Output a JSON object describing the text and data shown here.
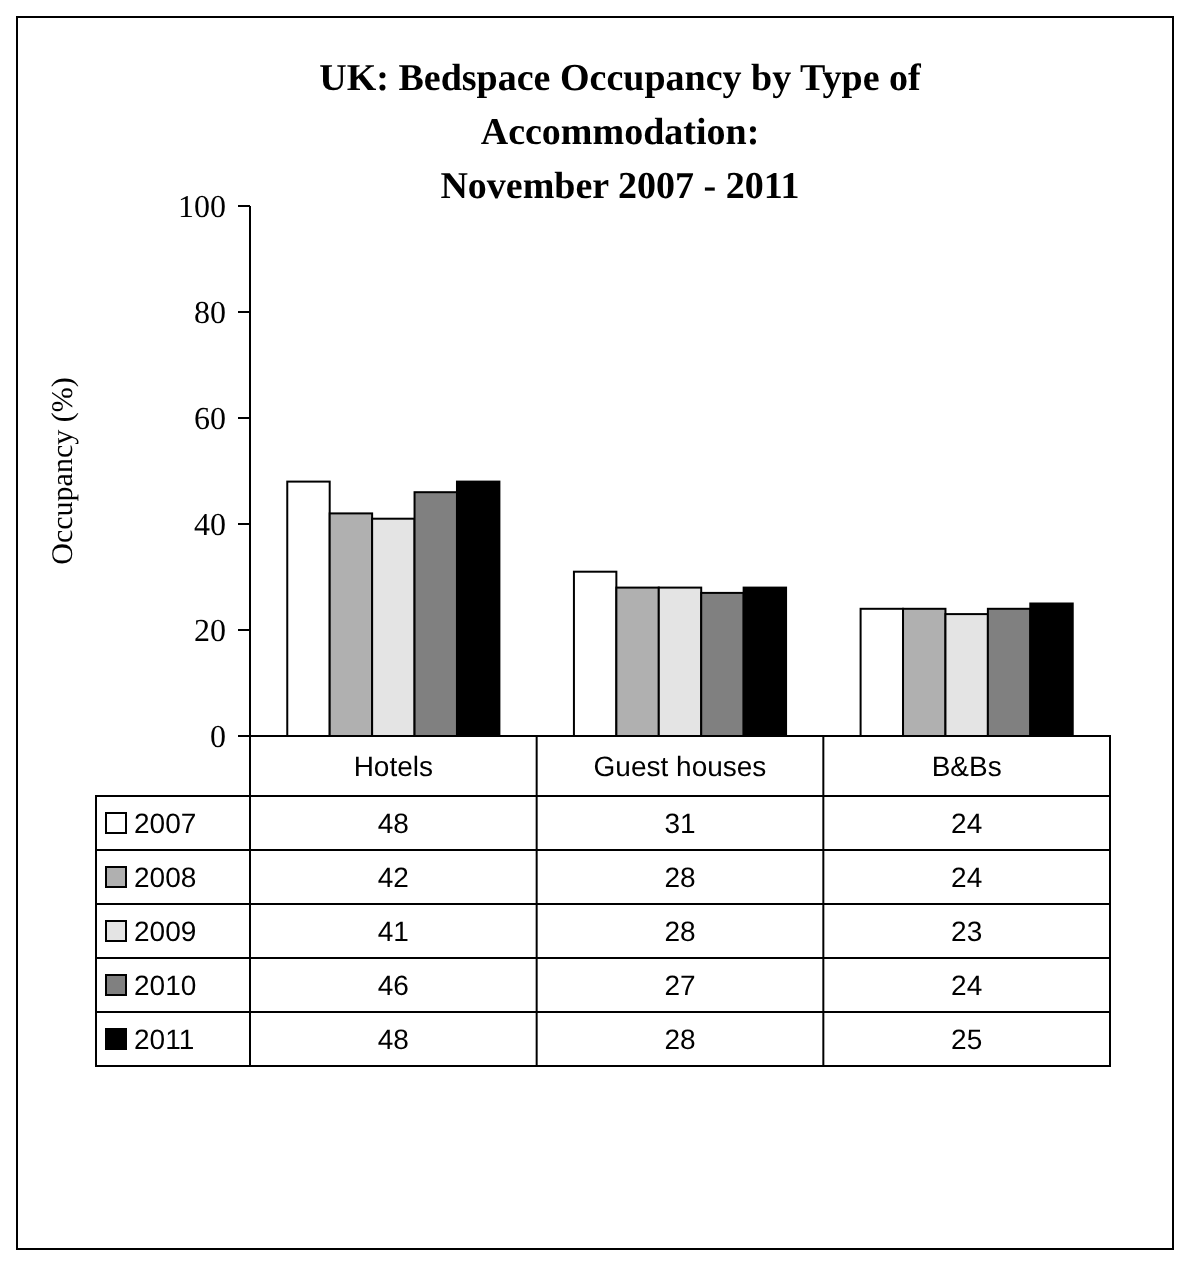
{
  "chart_data": {
    "type": "bar",
    "title": "UK: Bedspace Occupancy by Type of\nAccommodation:\nNovember 2007 - 2011",
    "ylabel": "Occupancy (%)",
    "categories": [
      "Hotels",
      "Guest houses",
      "B&Bs"
    ],
    "series": [
      {
        "name": "2007",
        "color": "#ffffff",
        "values": [
          48,
          31,
          24
        ]
      },
      {
        "name": "2008",
        "color": "#b0b0b0",
        "values": [
          42,
          28,
          24
        ]
      },
      {
        "name": "2009",
        "color": "#e4e4e4",
        "values": [
          41,
          28,
          23
        ]
      },
      {
        "name": "2010",
        "color": "#808080",
        "values": [
          46,
          27,
          24
        ]
      },
      {
        "name": "2011",
        "color": "#000000",
        "values": [
          48,
          28,
          25
        ]
      }
    ],
    "ylim": [
      0,
      100
    ],
    "yticks": [
      0,
      20,
      40,
      60,
      80,
      100
    ],
    "grid": false,
    "legend": "bottom",
    "data_labels": true
  }
}
